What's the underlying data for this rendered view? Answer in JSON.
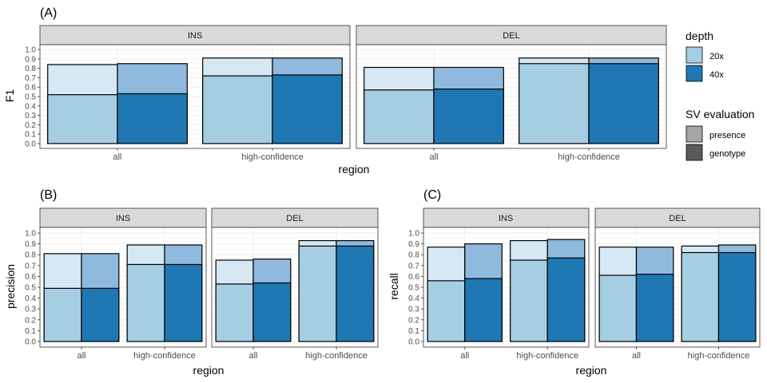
{
  "chart_data": [
    {
      "panel_label": "(A)",
      "type": "bar",
      "xlabel": "region",
      "ylabel": "F1",
      "ylim": [
        0,
        1
      ],
      "yticks": [
        "0.0",
        "0.1",
        "0.2",
        "0.3",
        "0.4",
        "0.5",
        "0.6",
        "0.7",
        "0.8",
        "0.9",
        "1.0"
      ],
      "categories": [
        "all",
        "high-confidence"
      ],
      "facets": [
        {
          "name": "INS",
          "values": {
            "20x": {
              "presence": [
                0.84,
                0.91
              ],
              "genotype": [
                0.52,
                0.72
              ]
            },
            "40x": {
              "presence": [
                0.85,
                0.91
              ],
              "genotype": [
                0.53,
                0.73
              ]
            }
          }
        },
        {
          "name": "DEL",
          "values": {
            "20x": {
              "presence": [
                0.81,
                0.91
              ],
              "genotype": [
                0.57,
                0.85
              ]
            },
            "40x": {
              "presence": [
                0.81,
                0.91
              ],
              "genotype": [
                0.58,
                0.85
              ]
            }
          }
        }
      ]
    },
    {
      "panel_label": "(B)",
      "type": "bar",
      "xlabel": "region",
      "ylabel": "precision",
      "ylim": [
        0,
        1
      ],
      "yticks": [
        "0.0",
        "0.1",
        "0.2",
        "0.3",
        "0.4",
        "0.5",
        "0.6",
        "0.7",
        "0.8",
        "0.9",
        "1.0"
      ],
      "categories": [
        "all",
        "high-confidence"
      ],
      "facets": [
        {
          "name": "INS",
          "values": {
            "20x": {
              "presence": [
                0.81,
                0.89
              ],
              "genotype": [
                0.49,
                0.71
              ]
            },
            "40x": {
              "presence": [
                0.81,
                0.89
              ],
              "genotype": [
                0.49,
                0.71
              ]
            }
          }
        },
        {
          "name": "DEL",
          "values": {
            "20x": {
              "presence": [
                0.75,
                0.93
              ],
              "genotype": [
                0.53,
                0.88
              ]
            },
            "40x": {
              "presence": [
                0.76,
                0.93
              ],
              "genotype": [
                0.54,
                0.88
              ]
            }
          }
        }
      ]
    },
    {
      "panel_label": "(C)",
      "type": "bar",
      "xlabel": "region",
      "ylabel": "recall",
      "ylim": [
        0,
        1
      ],
      "yticks": [
        "0.0",
        "0.1",
        "0.2",
        "0.3",
        "0.4",
        "0.5",
        "0.6",
        "0.7",
        "0.8",
        "0.9",
        "1.0"
      ],
      "categories": [
        "all",
        "high-confidence"
      ],
      "facets": [
        {
          "name": "INS",
          "values": {
            "20x": {
              "presence": [
                0.87,
                0.93
              ],
              "genotype": [
                0.56,
                0.75
              ]
            },
            "40x": {
              "presence": [
                0.9,
                0.94
              ],
              "genotype": [
                0.58,
                0.77
              ]
            }
          }
        },
        {
          "name": "DEL",
          "values": {
            "20x": {
              "presence": [
                0.87,
                0.88
              ],
              "genotype": [
                0.61,
                0.82
              ]
            },
            "40x": {
              "presence": [
                0.87,
                0.89
              ],
              "genotype": [
                0.62,
                0.82
              ]
            }
          }
        }
      ]
    }
  ],
  "legend": {
    "depth_title": "depth",
    "depth_items": [
      {
        "label": "20x",
        "color": "#a6cee3"
      },
      {
        "label": "40x",
        "color": "#1f78b4"
      }
    ],
    "sv_title": "SV evaluation",
    "sv_items": [
      {
        "label": "presence",
        "color": "#a6a6a6"
      },
      {
        "label": "genotype",
        "color": "#5a5a5a"
      }
    ]
  },
  "colors": {
    "presence_20x": "#d6e8f3",
    "presence_40x": "#8fbadd",
    "genotype_20x": "#a6cee3",
    "genotype_40x": "#1f78b4",
    "strip_bg": "#d9d9d9",
    "grid": "#ebebeb"
  }
}
